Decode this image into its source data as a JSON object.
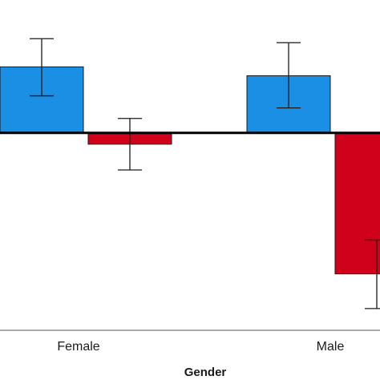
{
  "chart_data": {
    "type": "bar",
    "xlabel": "Gender",
    "categories": [
      "Female",
      "Male"
    ],
    "series": [
      {
        "color": "#1a8fe3",
        "values": [
          0.82,
          0.71
        ],
        "error_low": [
          0.46,
          0.31
        ],
        "error_high": [
          1.17,
          1.12
        ]
      },
      {
        "color": "#d0021b",
        "values": [
          -0.14,
          -1.75
        ],
        "error_low": [
          -0.46,
          -2.18
        ],
        "error_high": [
          0.18,
          -1.33
        ]
      }
    ],
    "ylim": [
      -2.45,
      1.65
    ],
    "zero_line": true,
    "grid": false
  }
}
